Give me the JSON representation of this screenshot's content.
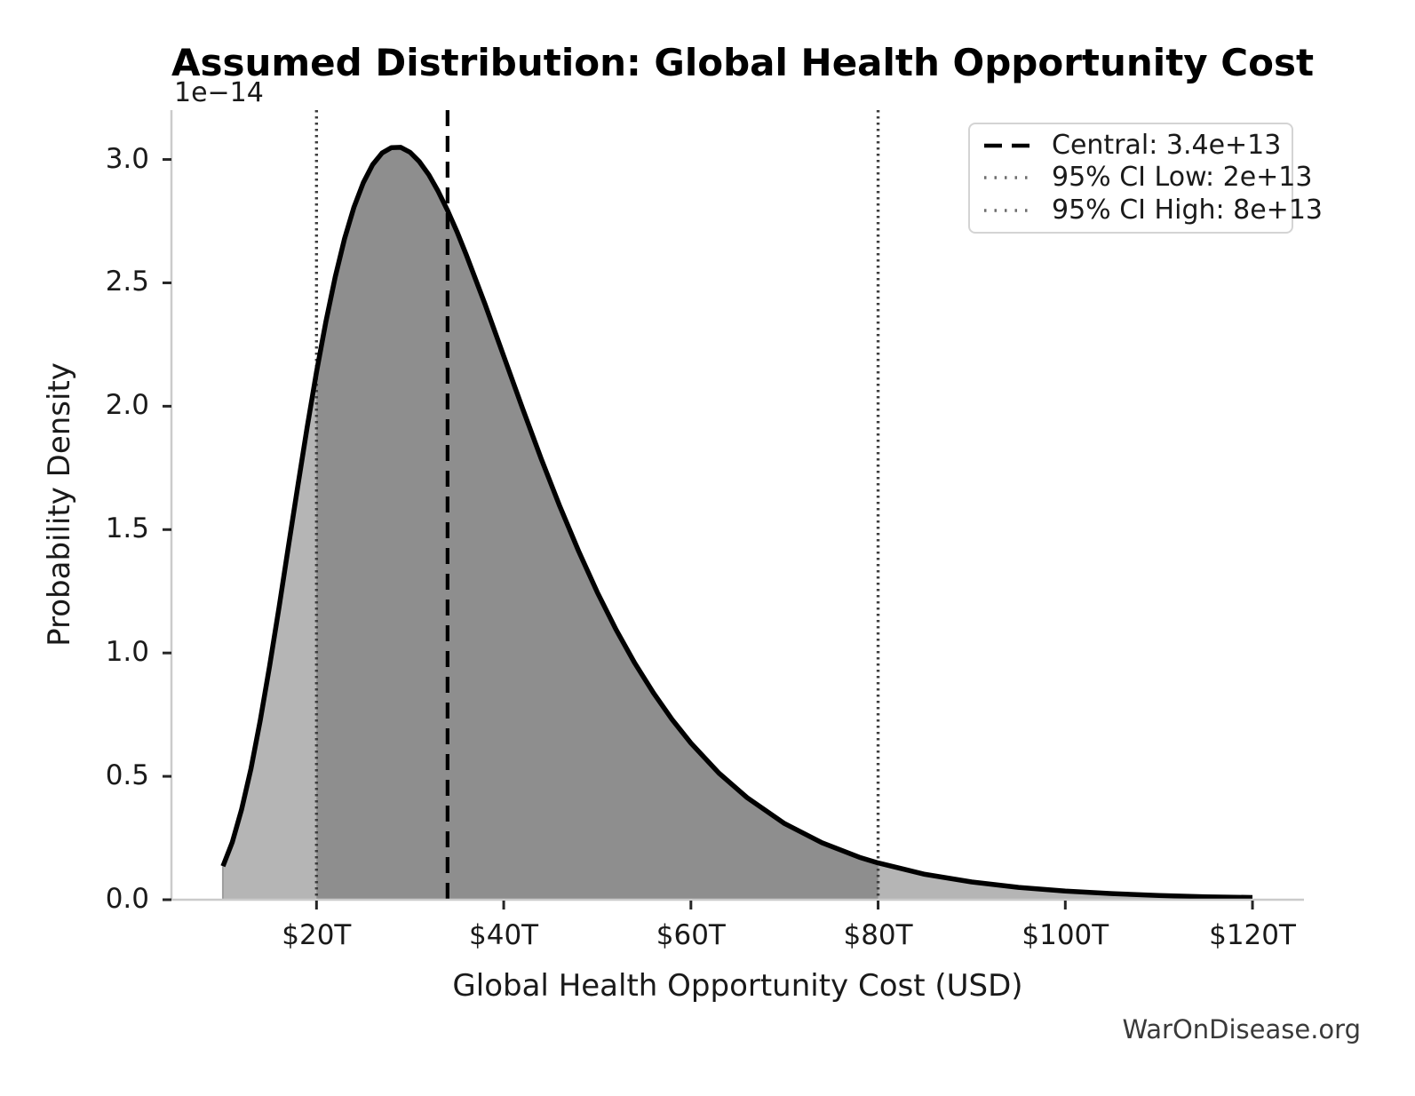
{
  "chart_data": {
    "type": "area",
    "title": "Assumed Distribution: Global Health Opportunity Cost",
    "xlabel": "Global Health Opportunity Cost (USD)",
    "ylabel": "Probability Density",
    "y_offset_text": "1e−14",
    "watermark": "WarOnDisease.org",
    "xlim_trillions": [
      4.5,
      125.5
    ],
    "ylim_density_1e14": [
      0,
      3.2
    ],
    "grid": false,
    "legend_position": "upper right",
    "x_ticks": {
      "values_trillions": [
        20,
        40,
        60,
        80,
        100,
        120
      ],
      "labels": [
        "$20T",
        "$40T",
        "$60T",
        "$80T",
        "$100T",
        "$120T"
      ]
    },
    "y_ticks": {
      "values_1e14": [
        0.0,
        0.5,
        1.0,
        1.5,
        2.0,
        2.5,
        3.0
      ],
      "labels": [
        "0.0",
        "0.5",
        "1.0",
        "1.5",
        "2.0",
        "2.5",
        "3.0"
      ]
    },
    "curve": {
      "x_trillions": [
        10,
        11,
        12,
        13,
        14,
        15,
        16,
        17,
        18,
        19,
        20,
        21,
        22,
        23,
        24,
        25,
        26,
        27,
        28,
        29,
        30,
        31,
        32,
        33,
        34,
        35,
        36,
        38,
        40,
        42,
        44,
        46,
        48,
        50,
        52,
        54,
        56,
        58,
        60,
        63,
        66,
        70,
        74,
        78,
        80,
        85,
        90,
        95,
        100,
        105,
        110,
        115,
        120
      ],
      "density_1e14": [
        0.136,
        0.233,
        0.366,
        0.532,
        0.729,
        0.949,
        1.186,
        1.432,
        1.677,
        1.915,
        2.138,
        2.343,
        2.524,
        2.679,
        2.807,
        2.906,
        2.979,
        3.026,
        3.048,
        3.049,
        3.029,
        2.991,
        2.938,
        2.871,
        2.794,
        2.708,
        2.614,
        2.414,
        2.203,
        1.993,
        1.788,
        1.594,
        1.413,
        1.246,
        1.095,
        0.959,
        0.838,
        0.73,
        0.635,
        0.513,
        0.414,
        0.309,
        0.231,
        0.172,
        0.149,
        0.103,
        0.072,
        0.05,
        0.035,
        0.025,
        0.017,
        0.012,
        0.009
      ]
    },
    "ci_fill_range_trillions": [
      20,
      80
    ],
    "annotations": [
      {
        "id": "central",
        "legend_label": "Central: 3.4e+13",
        "value_usd": 34000000000000.0,
        "x_trillions": 34,
        "line_style": "dashed",
        "color": "#000000"
      },
      {
        "id": "ci_low",
        "legend_label": "95% CI Low: 2e+13",
        "value_usd": 20000000000000.0,
        "x_trillions": 20,
        "line_style": "dotted",
        "color": "#3f3f3f"
      },
      {
        "id": "ci_high",
        "legend_label": "95% CI High: 8e+13",
        "value_usd": 80000000000000.0,
        "x_trillions": 80,
        "line_style": "dotted",
        "color": "#3f3f3f"
      }
    ],
    "style": {
      "curve_color": "#000000",
      "tail_fill_color": "#b5b5b5",
      "ci_fill_color": "#8e8e8e",
      "fill_edge_color": "#9e9e9e",
      "spine_color": "#cbcbcb",
      "tick_mark_color": "#262626",
      "text_color": "#1a1a1a",
      "legend_dashed_color": "#000000",
      "legend_dotted_color": "#6e6e6e",
      "legend_border_color": "#d4d4d4",
      "watermark_color": "#3a3a3a"
    }
  }
}
